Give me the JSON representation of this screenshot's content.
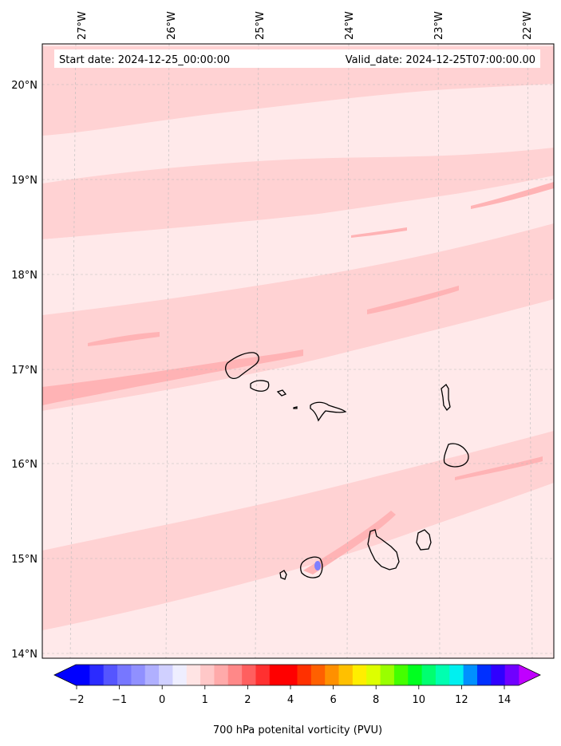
{
  "header": {
    "start_date": "Start date: 2024-12-25_00:00:00",
    "valid_date": "Valid_date: 2024-12-25T07:00:00.00"
  },
  "map": {
    "lon_labels": [
      "27°W",
      "26°W",
      "25°W",
      "24°W",
      "23°W",
      "22°W"
    ],
    "lat_labels": [
      "20°N",
      "19°N",
      "18°N",
      "17°N",
      "16°N",
      "15°N",
      "14°N"
    ],
    "field_colors": {
      "background": "#ffffff",
      "level_1": "#ffe9ea",
      "level_2": "#ffd2d3",
      "level_3": "#ffb3b5",
      "negative_spot": "#7f7fff"
    },
    "coastline_color": "#000000"
  },
  "colorbar": {
    "tick_labels": [
      "−2",
      "−1",
      "0",
      "1",
      "2",
      "4",
      "6",
      "8",
      "10",
      "12",
      "14"
    ],
    "label": "700 hPa potenital vorticity (PVU)",
    "colors": [
      "#0000ff",
      "#2b2bff",
      "#5555ff",
      "#7777ff",
      "#9090ff",
      "#b0b0ff",
      "#d0d0ff",
      "#eeeeff",
      "#ffe4e4",
      "#ffc8c8",
      "#ffaaaa",
      "#ff8888",
      "#ff5f5f",
      "#ff3030",
      "#ff0000",
      "#ff0000",
      "#ff3000",
      "#ff6000",
      "#ff9000",
      "#ffc000",
      "#ffee00",
      "#ddff00",
      "#99ff00",
      "#44ff00",
      "#00ff20",
      "#00ff70",
      "#00ffb0",
      "#00f0f0",
      "#0090ff",
      "#0030ff",
      "#3000ff",
      "#7000ff"
    ],
    "extend_min_color": "#0000ff",
    "extend_max_color": "#c000ff"
  }
}
